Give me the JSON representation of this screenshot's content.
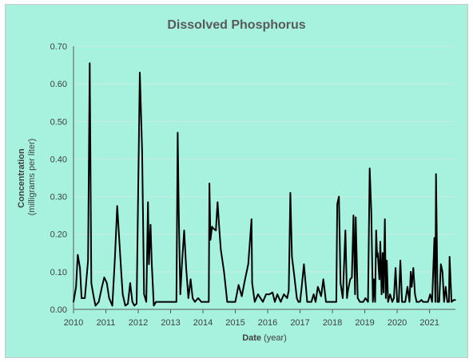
{
  "chart_data": {
    "type": "line",
    "title": "Dissolved Phosphorus",
    "xlabel": {
      "bold": "Date",
      "rest": " (year)"
    },
    "ylabel": {
      "line1": "Concentration",
      "line2": "(milligrams per liter)"
    },
    "xlim": [
      2010,
      2021.8
    ],
    "ylim": [
      0,
      0.7
    ],
    "x_ticks": [
      2010,
      2011,
      2012,
      2013,
      2014,
      2015,
      2016,
      2017,
      2018,
      2019,
      2020,
      2021
    ],
    "y_ticks": [
      "0.00",
      "0.10",
      "0.20",
      "0.30",
      "0.40",
      "0.50",
      "0.60",
      "0.70"
    ],
    "grid": "horizontal",
    "line_color": "#000000",
    "background_color": "#a7f2df",
    "gridline_color": "#c8ebe2",
    "series": [
      {
        "x": [
          2010.0,
          2010.08,
          2010.13,
          2010.2,
          2010.25,
          2010.35,
          2010.45,
          2010.5,
          2010.55,
          2010.62,
          2010.68,
          2010.78,
          2010.88,
          2010.95,
          2011.03,
          2011.1,
          2011.2,
          2011.28,
          2011.35,
          2011.48,
          2011.52,
          2011.6,
          2011.68,
          2011.75,
          2011.82,
          2011.88,
          2011.95,
          2012.05,
          2012.12,
          2012.18,
          2012.25,
          2012.3,
          2012.33,
          2012.38,
          2012.42,
          2012.48,
          2012.55,
          2012.62,
          2012.75,
          2013.0,
          2013.18,
          2013.22,
          2013.25,
          2013.3,
          2013.35,
          2013.42,
          2013.48,
          2013.55,
          2013.62,
          2013.68,
          2013.75,
          2013.85,
          2013.95,
          2014.05,
          2014.18,
          2014.2,
          2014.23,
          2014.28,
          2014.32,
          2014.4,
          2014.45,
          2014.5,
          2014.55,
          2014.65,
          2014.75,
          2014.85,
          2015.0,
          2015.1,
          2015.2,
          2015.3,
          2015.4,
          2015.5,
          2015.52,
          2015.6,
          2015.7,
          2015.85,
          2015.95,
          2016.05,
          2016.15,
          2016.22,
          2016.3,
          2016.4,
          2016.5,
          2016.6,
          2016.65,
          2016.7,
          2016.75,
          2016.82,
          2016.9,
          2016.95,
          2017.0,
          2017.05,
          2017.12,
          2017.22,
          2017.35,
          2017.42,
          2017.48,
          2017.55,
          2017.65,
          2017.72,
          2017.8,
          2017.9,
          2018.02,
          2018.12,
          2018.15,
          2018.2,
          2018.25,
          2018.32,
          2018.4,
          2018.45,
          2018.48,
          2018.55,
          2018.6,
          2018.65,
          2018.7,
          2018.72,
          2018.78,
          2018.85,
          2018.95,
          2019.02,
          2019.1,
          2019.15,
          2019.2,
          2019.25,
          2019.28,
          2019.32,
          2019.35,
          2019.38,
          2019.4,
          2019.45,
          2019.48,
          2019.52,
          2019.55,
          2019.58,
          2019.62,
          2019.65,
          2019.68,
          2019.72,
          2019.78,
          2019.85,
          2019.9,
          2019.95,
          2020.0,
          2020.05,
          2020.1,
          2020.15,
          2020.18,
          2020.25,
          2020.32,
          2020.38,
          2020.42,
          2020.45,
          2020.5,
          2020.55,
          2020.6,
          2020.68,
          2020.75,
          2020.8,
          2020.88,
          2020.95,
          2021.02,
          2021.08,
          2021.15,
          2021.18,
          2021.2,
          2021.25,
          2021.3,
          2021.35,
          2021.4,
          2021.45,
          2021.5,
          2021.55,
          2021.6,
          2021.62,
          2021.68,
          2021.75,
          2021.8
        ],
        "y": [
          0.02,
          0.06,
          0.145,
          0.11,
          0.03,
          0.03,
          0.13,
          0.655,
          0.07,
          0.035,
          0.01,
          0.02,
          0.06,
          0.085,
          0.07,
          0.03,
          0.01,
          0.14,
          0.275,
          0.09,
          0.04,
          0.01,
          0.015,
          0.07,
          0.02,
          0.01,
          0.015,
          0.63,
          0.42,
          0.04,
          0.02,
          0.285,
          0.12,
          0.225,
          0.12,
          0.01,
          0.02,
          0.02,
          0.02,
          0.02,
          0.02,
          0.47,
          0.26,
          0.04,
          0.12,
          0.21,
          0.11,
          0.03,
          0.08,
          0.03,
          0.02,
          0.03,
          0.02,
          0.02,
          0.02,
          0.335,
          0.185,
          0.22,
          0.215,
          0.21,
          0.285,
          0.22,
          0.16,
          0.1,
          0.02,
          0.02,
          0.02,
          0.065,
          0.035,
          0.08,
          0.12,
          0.24,
          0.07,
          0.02,
          0.04,
          0.02,
          0.04,
          0.04,
          0.045,
          0.02,
          0.04,
          0.02,
          0.04,
          0.03,
          0.05,
          0.31,
          0.14,
          0.09,
          0.03,
          0.02,
          0.02,
          0.06,
          0.12,
          0.02,
          0.02,
          0.04,
          0.02,
          0.06,
          0.035,
          0.08,
          0.02,
          0.02,
          0.02,
          0.02,
          0.28,
          0.3,
          0.07,
          0.03,
          0.21,
          0.03,
          0.05,
          0.08,
          0.085,
          0.25,
          0.04,
          0.245,
          0.03,
          0.02,
          0.02,
          0.03,
          0.02,
          0.375,
          0.26,
          0.02,
          0.08,
          0.02,
          0.21,
          0.14,
          0.15,
          0.08,
          0.18,
          0.04,
          0.15,
          0.045,
          0.24,
          0.03,
          0.13,
          0.02,
          0.04,
          0.02,
          0.03,
          0.11,
          0.02,
          0.02,
          0.13,
          0.02,
          0.02,
          0.02,
          0.06,
          0.02,
          0.1,
          0.06,
          0.11,
          0.04,
          0.02,
          0.02,
          0.025,
          0.02,
          0.02,
          0.02,
          0.04,
          0.02,
          0.19,
          0.02,
          0.36,
          0.02,
          0.02,
          0.12,
          0.1,
          0.02,
          0.06,
          0.02,
          0.02,
          0.14,
          0.02,
          0.025,
          0.025
        ]
      }
    ]
  }
}
